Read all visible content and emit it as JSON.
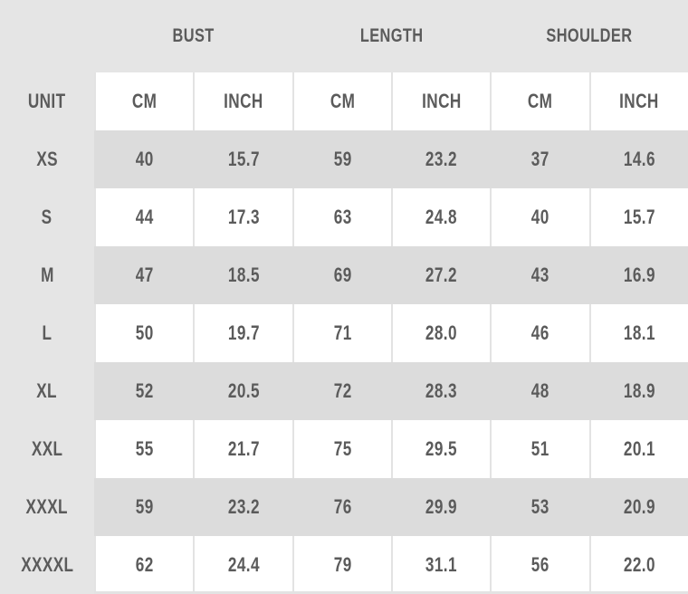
{
  "groups": [
    "BUST",
    "LENGTH",
    "SHOULDER"
  ],
  "unit_label": "UNIT",
  "units": [
    "CM",
    "INCH",
    "CM",
    "INCH",
    "CM",
    "INCH"
  ],
  "rows": [
    {
      "size": "XS",
      "values": [
        "40",
        "15.7",
        "59",
        "23.2",
        "37",
        "14.6"
      ]
    },
    {
      "size": "S",
      "values": [
        "44",
        "17.3",
        "63",
        "24.8",
        "40",
        "15.7"
      ]
    },
    {
      "size": "M",
      "values": [
        "47",
        "18.5",
        "69",
        "27.2",
        "43",
        "16.9"
      ]
    },
    {
      "size": "L",
      "values": [
        "50",
        "19.7",
        "71",
        "28.0",
        "46",
        "18.1"
      ]
    },
    {
      "size": "XL",
      "values": [
        "52",
        "20.5",
        "72",
        "28.3",
        "48",
        "18.9"
      ]
    },
    {
      "size": "XXL",
      "values": [
        "55",
        "21.7",
        "75",
        "29.5",
        "51",
        "20.1"
      ]
    },
    {
      "size": "XXXL",
      "values": [
        "59",
        "23.2",
        "76",
        "29.9",
        "53",
        "20.9"
      ]
    },
    {
      "size": "XXXXL",
      "values": [
        "62",
        "24.4",
        "79",
        "31.1",
        "56",
        "22.0"
      ]
    }
  ]
}
